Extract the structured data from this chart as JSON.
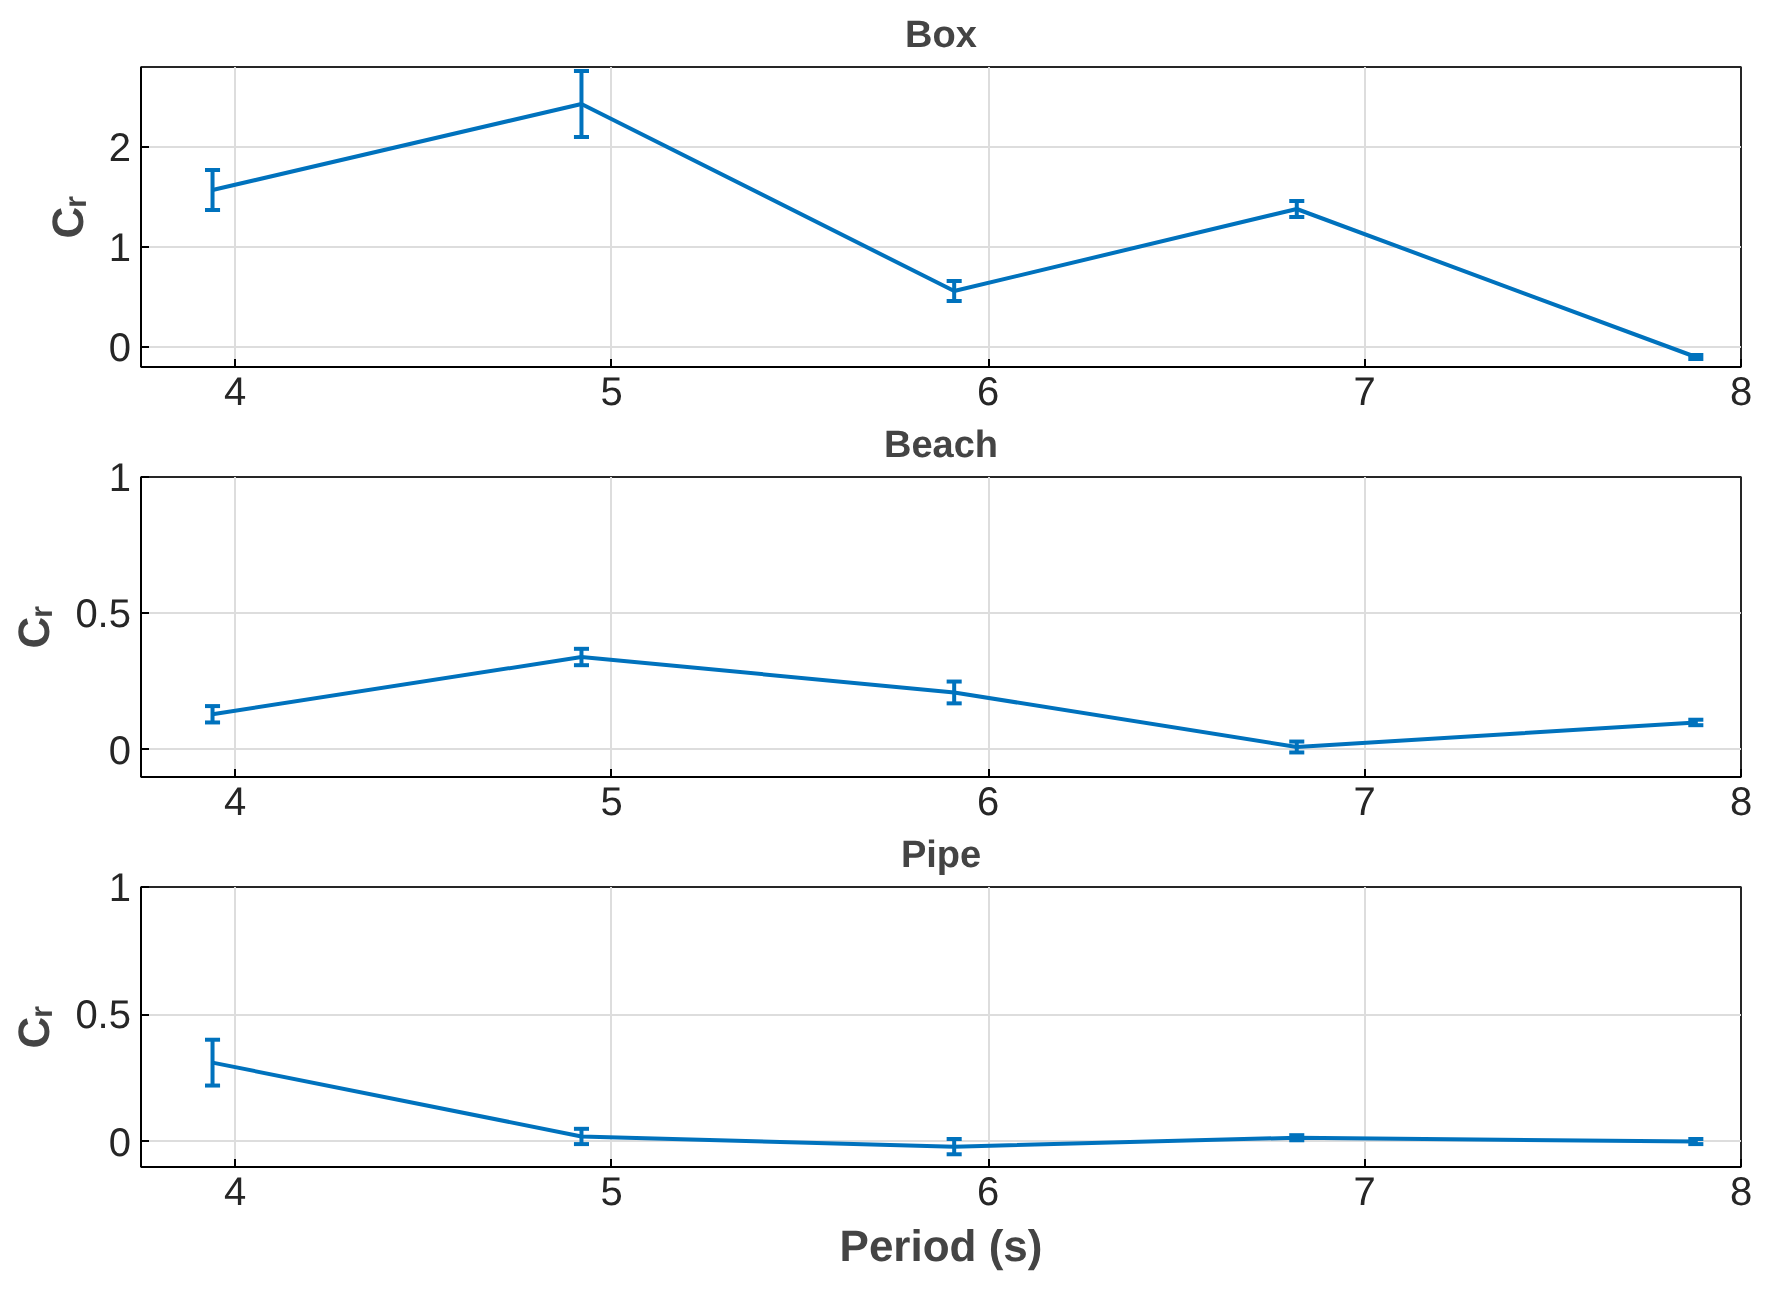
{
  "chart_data": [
    {
      "type": "line",
      "title": "Box",
      "ylabel": "Cᵣ",
      "x": [
        3.94,
        4.92,
        5.91,
        6.82,
        7.88
      ],
      "xlim": [
        3.75,
        8
      ],
      "xticks": [
        4,
        5,
        6,
        7,
        8
      ],
      "ylim": [
        -0.2,
        2.8
      ],
      "yticks": [
        0,
        1,
        2
      ],
      "grid": true,
      "series": [
        {
          "color": "#0072bd",
          "values": [
            1.57,
            2.43,
            0.56,
            1.38,
            -0.1
          ],
          "errors": [
            0.2,
            0.33,
            0.1,
            0.08,
            0.02
          ]
        }
      ]
    },
    {
      "type": "line",
      "title": "Beach",
      "ylabel": "Cᵣ",
      "x": [
        3.94,
        4.92,
        5.91,
        6.82,
        7.88
      ],
      "xlim": [
        3.75,
        8
      ],
      "xticks": [
        4,
        5,
        6,
        7,
        8
      ],
      "ylim": [
        -0.1,
        1
      ],
      "yticks": [
        0,
        0.5,
        1
      ],
      "grid": true,
      "series": [
        {
          "color": "#0072bd",
          "values": [
            0.13,
            0.34,
            0.21,
            0.01,
            0.1
          ],
          "errors": [
            0.03,
            0.03,
            0.04,
            0.02,
            0.01
          ]
        }
      ]
    },
    {
      "type": "line",
      "title": "Pipe",
      "xlabel": "Period (s)",
      "ylabel": "Cᵣ",
      "x": [
        3.94,
        4.92,
        5.91,
        6.82,
        7.88
      ],
      "xlim": [
        3.75,
        8
      ],
      "xticks": [
        4,
        5,
        6,
        7,
        8
      ],
      "ylim": [
        -0.1,
        1
      ],
      "yticks": [
        0,
        0.5,
        1
      ],
      "grid": true,
      "series": [
        {
          "color": "#0072bd",
          "values": [
            0.31,
            0.02,
            -0.02,
            0.015,
            0
          ],
          "errors": [
            0.09,
            0.03,
            0.03,
            0.01,
            0.01
          ]
        }
      ]
    }
  ]
}
